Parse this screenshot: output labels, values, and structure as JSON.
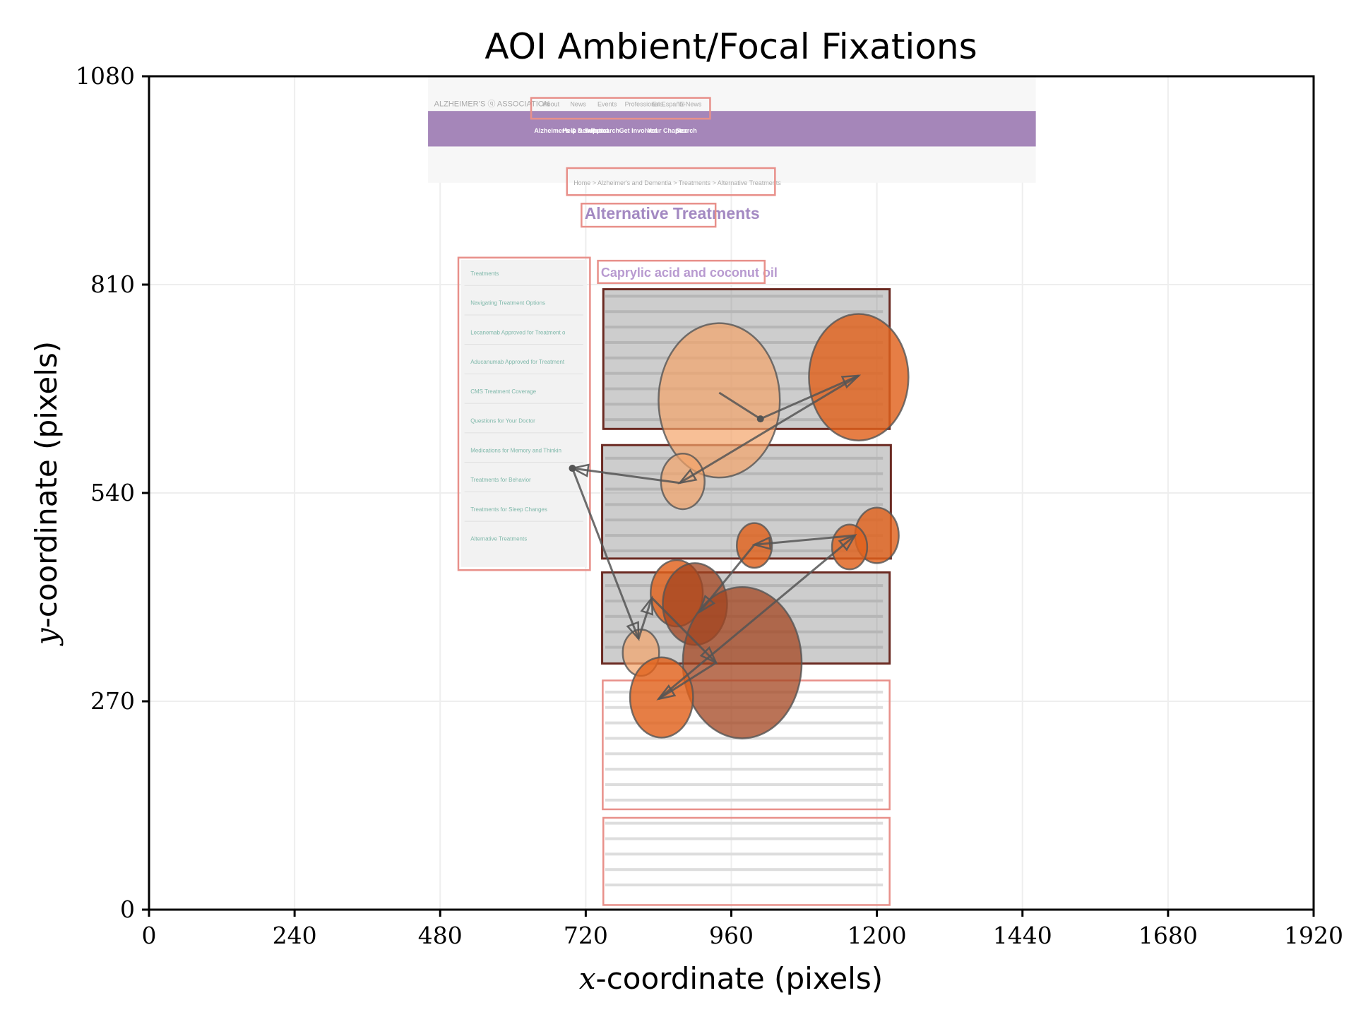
{
  "chart_data": {
    "type": "scatter",
    "title": "AOI Ambient/Focal Fixations",
    "xlabel_prefix": "x",
    "xlabel_rest": "-coordinate (pixels)",
    "ylabel_prefix": "y",
    "ylabel_rest": "-coordinate (pixels)",
    "xlim": [
      0,
      1920
    ],
    "ylim": [
      0,
      1080
    ],
    "xticks": [
      0,
      240,
      480,
      720,
      960,
      1200,
      1440,
      1680,
      1920
    ],
    "yticks": [
      0,
      270,
      540,
      810,
      1080
    ],
    "grid": true,
    "colors": {
      "ambient_light": "#f4a46a",
      "focal": "#e0621c",
      "focal_dark": "#a3441f",
      "arrow": "#555555",
      "aoi_border_red": "#e8908a",
      "aoi_border_dark": "#6b2a22",
      "nav_bar": "#a07fb5"
    },
    "background": {
      "page_title": "Alternative Treatments",
      "section_heading": "Caprylic acid and coconut oil",
      "sidebar": [
        "Treatments",
        "Navigating Treatment Options",
        "Lecanemab Approved for Treatment of Early Alzheimer's Disease",
        "Aducanumab Approved for Treatment of Alzheimer's Disease",
        "CMS Treatment Coverage",
        "Questions for Your Doctor",
        "Medications for Memory and Thinking",
        "Treatments for Behavior",
        "Treatments for Sleep Changes",
        "Alternative Treatments"
      ],
      "nav_items": [
        "Alzheimer's & Dementia",
        "Help & Support",
        "Research",
        "Get Involved",
        "Your Chapter",
        "Search"
      ],
      "top_links": [
        "About",
        "News",
        "Events",
        "Professionals",
        "En Español",
        "E-News"
      ],
      "breadcrumb": "Home > Alzheimer's and Dementia > Treatments > Alternative Treatments"
    },
    "aois": [
      {
        "x0": 630,
        "y0": 1025,
        "x1": 925,
        "y1": 1052,
        "style": "red"
      },
      {
        "x0": 689,
        "y0": 926,
        "x1": 1032,
        "y1": 961,
        "style": "red"
      },
      {
        "x0": 713,
        "y0": 885,
        "x1": 934,
        "y1": 915,
        "style": "red"
      },
      {
        "x0": 510,
        "y0": 440,
        "x1": 727,
        "y1": 845,
        "style": "red"
      },
      {
        "x0": 740,
        "y0": 812,
        "x1": 1015,
        "y1": 841,
        "style": "red"
      },
      {
        "x0": 749,
        "y0": 623,
        "x1": 1221,
        "y1": 804,
        "style": "dark"
      },
      {
        "x0": 747,
        "y0": 455,
        "x1": 1223,
        "y1": 602,
        "style": "dark"
      },
      {
        "x0": 747,
        "y0": 319,
        "x1": 1221,
        "y1": 437,
        "style": "dark"
      },
      {
        "x0": 748,
        "y0": 130,
        "x1": 1221,
        "y1": 297,
        "style": "red"
      },
      {
        "x0": 749,
        "y0": 6,
        "x1": 1221,
        "y1": 119,
        "style": "red"
      }
    ],
    "fixations": [
      {
        "x": 940,
        "y": 660,
        "rx": 100,
        "ry": 100,
        "kind": "ambient"
      },
      {
        "x": 1170,
        "y": 690,
        "rx": 82,
        "ry": 82,
        "kind": "focal"
      },
      {
        "x": 880,
        "y": 555,
        "rx": 36,
        "ry": 36,
        "kind": "ambient"
      },
      {
        "x": 1200,
        "y": 485,
        "rx": 36,
        "ry": 36,
        "kind": "focal"
      },
      {
        "x": 1155,
        "y": 470,
        "rx": 29,
        "ry": 29,
        "kind": "focal"
      },
      {
        "x": 998,
        "y": 472,
        "rx": 29,
        "ry": 29,
        "kind": "focal"
      },
      {
        "x": 870,
        "y": 410,
        "rx": 43,
        "ry": 43,
        "kind": "focal"
      },
      {
        "x": 900,
        "y": 396,
        "rx": 53,
        "ry": 53,
        "kind": "focal_dark"
      },
      {
        "x": 978,
        "y": 320,
        "rx": 98,
        "ry": 98,
        "kind": "focal_dark"
      },
      {
        "x": 811,
        "y": 333,
        "rx": 30,
        "ry": 30,
        "kind": "ambient"
      },
      {
        "x": 845,
        "y": 275,
        "rx": 52,
        "ry": 52,
        "kind": "focal"
      }
    ],
    "scanpath": [
      {
        "x": 940,
        "y": 670,
        "head": false
      },
      {
        "x": 1008,
        "y": 636,
        "head": false
      },
      {
        "x": 1170,
        "y": 692,
        "head": true
      },
      {
        "x": 875,
        "y": 553,
        "head": true
      },
      {
        "x": 698,
        "y": 572,
        "head": true
      },
      {
        "x": 807,
        "y": 351,
        "head": true
      },
      {
        "x": 829,
        "y": 404,
        "head": true
      },
      {
        "x": 935,
        "y": 320,
        "head": true
      },
      {
        "x": 840,
        "y": 273,
        "head": true
      },
      {
        "x": 1164,
        "y": 485,
        "head": true
      },
      {
        "x": 998,
        "y": 473,
        "head": true
      },
      {
        "x": 908,
        "y": 386,
        "head": true
      }
    ]
  }
}
